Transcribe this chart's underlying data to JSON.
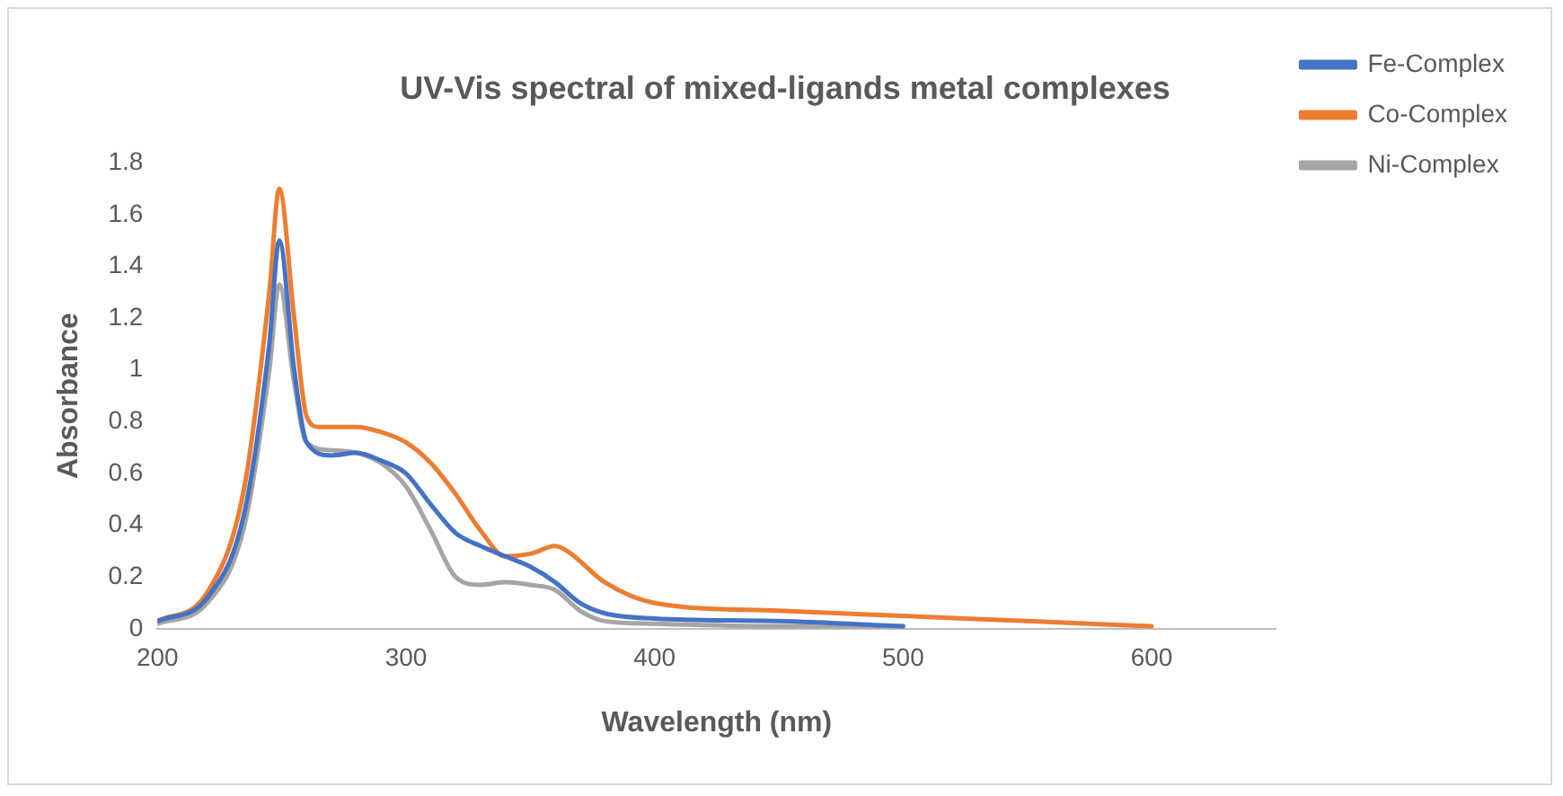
{
  "chart_data": {
    "type": "line",
    "title": "UV-Vis spectral of mixed-ligands metal complexes",
    "xlabel": "Wavelength (nm)",
    "ylabel": "Absorbance",
    "xlim": [
      200,
      650
    ],
    "xticks": [
      200,
      300,
      400,
      500,
      600
    ],
    "ylim": [
      0,
      1.8
    ],
    "yticks": [
      0,
      0.2,
      0.4,
      0.6,
      0.8,
      1,
      1.2,
      1.4,
      1.6,
      1.8
    ],
    "grid": false,
    "legend": "top right",
    "marker": "none",
    "series": [
      {
        "name": "Fe-Complex",
        "color": "#4472c4",
        "x": [
          200,
          220,
          235,
          245,
          249,
          255,
          260,
          270,
          280,
          290,
          300,
          310,
          320,
          330,
          340,
          350,
          360,
          370,
          380,
          400,
          450,
          500
        ],
        "values": [
          0.03,
          0.12,
          0.45,
          1.1,
          1.5,
          1.0,
          0.72,
          0.67,
          0.68,
          0.65,
          0.6,
          0.48,
          0.37,
          0.32,
          0.28,
          0.24,
          0.18,
          0.1,
          0.06,
          0.04,
          0.03,
          0.01
        ]
      },
      {
        "name": "Co-Complex",
        "color": "#ed7d31",
        "x": [
          200,
          220,
          235,
          245,
          249,
          255,
          260,
          265,
          280,
          290,
          300,
          310,
          320,
          330,
          340,
          350,
          360,
          365,
          380,
          400,
          450,
          500,
          550,
          600
        ],
        "values": [
          0.03,
          0.14,
          0.55,
          1.3,
          1.7,
          1.2,
          0.82,
          0.78,
          0.78,
          0.76,
          0.72,
          0.64,
          0.52,
          0.38,
          0.28,
          0.29,
          0.32,
          0.3,
          0.18,
          0.1,
          0.07,
          0.05,
          0.03,
          0.01
        ]
      },
      {
        "name": "Ni-Complex",
        "color": "#a5a5a5",
        "x": [
          200,
          220,
          235,
          245,
          249,
          255,
          260,
          270,
          280,
          290,
          300,
          310,
          320,
          330,
          340,
          350,
          360,
          370,
          380,
          400,
          450,
          500
        ],
        "values": [
          0.02,
          0.1,
          0.4,
          1.0,
          1.33,
          0.95,
          0.72,
          0.69,
          0.68,
          0.64,
          0.55,
          0.38,
          0.2,
          0.17,
          0.18,
          0.17,
          0.15,
          0.07,
          0.03,
          0.02,
          0.01,
          0.01
        ]
      }
    ]
  }
}
